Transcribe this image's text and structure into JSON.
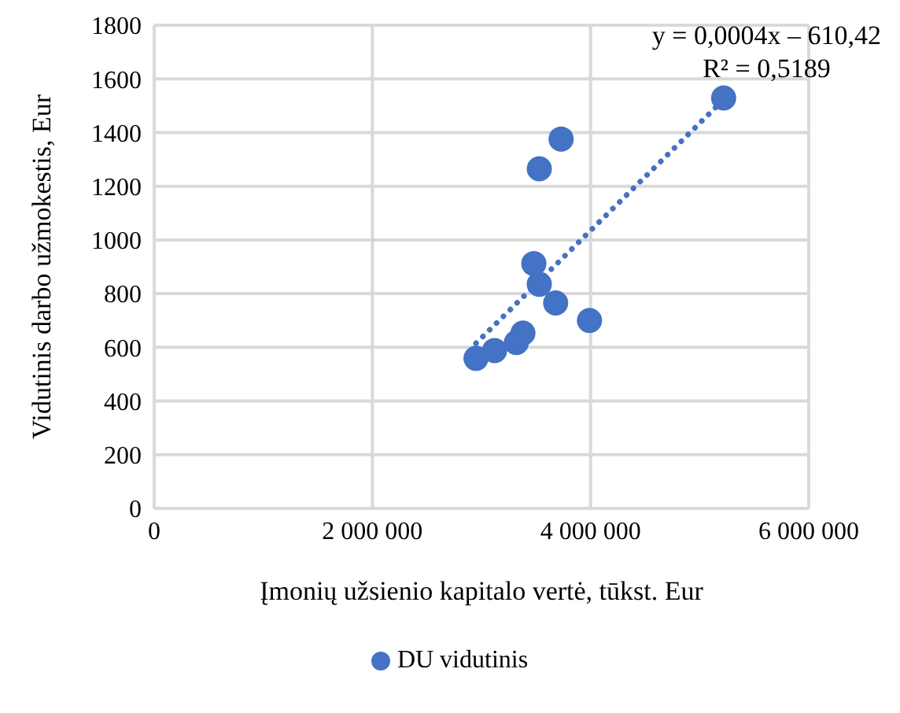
{
  "chart_data": {
    "type": "scatter",
    "xlabel": "Įmonių užsienio kapitalo vertė, tūkst. Eur",
    "ylabel": "Vidutinis darbo užmokestis, Eur",
    "x": [
      2950000,
      3120000,
      3320000,
      3380000,
      3990000,
      3680000,
      3530000,
      3480000,
      3530000,
      3730000,
      5220000
    ],
    "series": [
      {
        "name": "DU vidutinis",
        "color": "#4472c4",
        "marker": "circle",
        "values": [
          559,
          588,
          618,
          653,
          700,
          765,
          835,
          912,
          1265,
          1376,
          1529
        ]
      },
      {
        "type": "line",
        "color": "#4472c4",
        "line_style": "dotted",
        "marker": "none",
        "x": [
          2950000,
          5200000
        ],
        "values": [
          615,
          1515
        ]
      }
    ],
    "xlim": [
      0,
      6000000
    ],
    "xticks": [
      0,
      {
        "value": 2000000,
        "label": "2 000 000"
      },
      {
        "value": 4000000,
        "label": "4 000 000"
      },
      {
        "value": 6000000,
        "label": "6 000 000"
      }
    ],
    "ylim": [
      0,
      1800
    ],
    "yticks": [
      0,
      200,
      400,
      600,
      800,
      1000,
      1200,
      1400,
      1600,
      1800
    ],
    "grid": true,
    "legend": "bottom",
    "annotations": [
      "y = 0,0004x – 610,42",
      "R² = 0,5189"
    ]
  }
}
